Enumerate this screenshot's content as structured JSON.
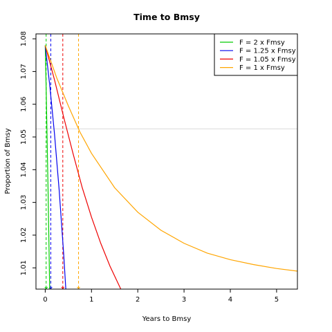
{
  "chart_data": {
    "type": "line",
    "title": "Time to Bmsy",
    "xlabel": "Years to Bmsy",
    "ylabel": "Proportion of Bmsy",
    "xlim": [
      -0.2,
      5.45
    ],
    "ylim": [
      1.0035,
      1.0815
    ],
    "x_ticks": [
      0,
      1,
      2,
      3,
      4,
      5
    ],
    "y_ticks": [
      1.01,
      1.02,
      1.03,
      1.04,
      1.05,
      1.06,
      1.07,
      1.08
    ],
    "grid": false,
    "legend_position": "top-right",
    "reference_line": {
      "orientation": "horizontal",
      "y": 1.0525,
      "color": "#d9d9d9"
    },
    "series": [
      {
        "name": "F = 2 x Fmsy",
        "color": "#00cc00",
        "x": [
          0,
          0.02,
          0.04,
          0.06,
          0.08,
          0.1
        ],
        "y": [
          1.078,
          1.065,
          1.05,
          1.035,
          1.018,
          1.0
        ]
      },
      {
        "name": "F = 1.25 x Fmsy",
        "color": "#0000ee",
        "x": [
          0,
          0.1,
          0.2,
          0.3,
          0.4,
          0.46
        ],
        "y": [
          1.078,
          1.0655,
          1.051,
          1.034,
          1.014,
          1.0
        ]
      },
      {
        "name": "F = 1.05 x Fmsy",
        "color": "#ee0000",
        "x": [
          0,
          0.2,
          0.4,
          0.6,
          0.8,
          1.0,
          1.2,
          1.4,
          1.6,
          1.7
        ],
        "y": [
          1.078,
          1.0675,
          1.056,
          1.045,
          1.0345,
          1.0255,
          1.0175,
          1.0105,
          1.0045,
          1.0015
        ]
      },
      {
        "name": "F = 1 x Fmsy",
        "color": "#ffa500",
        "x": [
          0,
          0.25,
          0.5,
          0.75,
          1,
          1.5,
          2,
          2.5,
          3,
          3.5,
          4,
          4.5,
          5,
          5.45
        ],
        "y": [
          1.078,
          1.068,
          1.0595,
          1.0515,
          1.045,
          1.0345,
          1.027,
          1.0215,
          1.0175,
          1.0145,
          1.0125,
          1.011,
          1.0098,
          1.009
        ]
      }
    ],
    "markers": [
      {
        "x": 0.02,
        "color": "#00cc00"
      },
      {
        "x": 0.12,
        "color": "#0000ee"
      },
      {
        "x": 0.38,
        "color": "#ee0000"
      },
      {
        "x": 0.72,
        "color": "#ffa500"
      }
    ]
  }
}
